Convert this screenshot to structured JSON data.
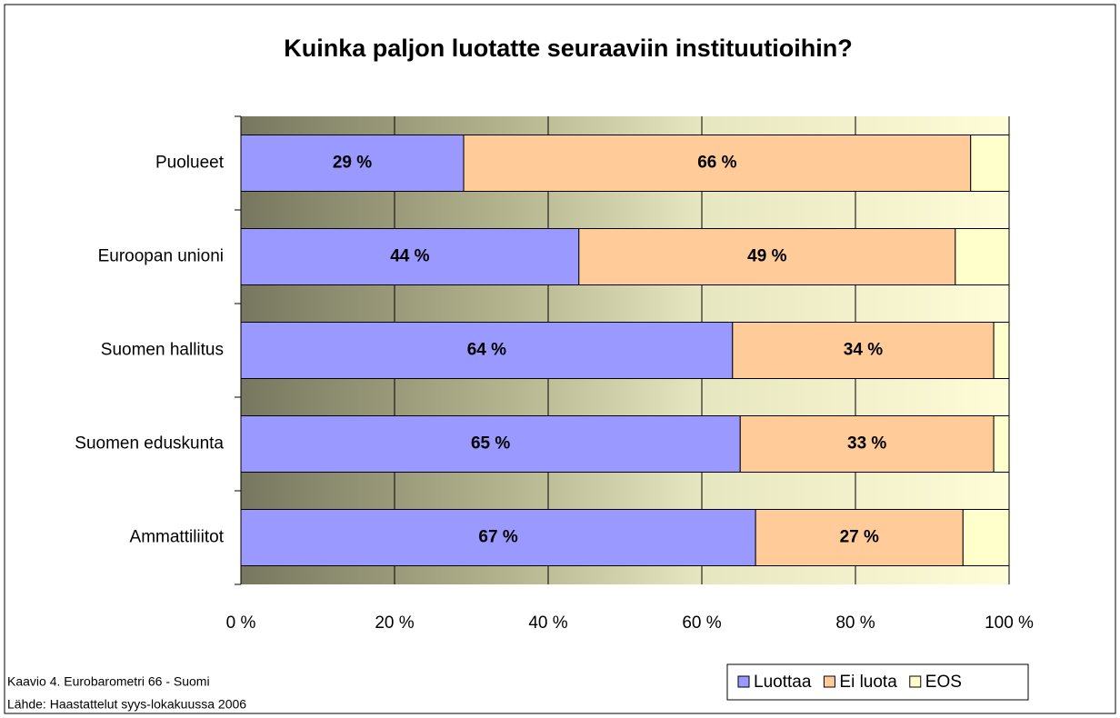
{
  "chart_data": {
    "type": "stacked_bar_horizontal",
    "title": "Kuinka paljon luotatte seuraaviin instituutioihin?",
    "categories": [
      "Puolueet",
      "Euroopan unioni",
      "Suomen hallitus",
      "Suomen eduskunta",
      "Ammattiliitot"
    ],
    "series": [
      {
        "name": "Luottaa",
        "color": "#9999ff",
        "values": [
          29,
          44,
          64,
          65,
          67
        ],
        "value_labels": [
          "29 %",
          "44 %",
          "64 %",
          "65 %",
          "67 %"
        ]
      },
      {
        "name": "Ei luota",
        "color": "#ffcc99",
        "values": [
          66,
          49,
          34,
          33,
          27
        ],
        "value_labels": [
          "66 %",
          "49 %",
          "34 %",
          "33 %",
          "27 %"
        ]
      },
      {
        "name": "EOS",
        "color": "#ffffcc",
        "values": [
          5,
          7,
          2,
          2,
          6
        ]
      }
    ],
    "xlim": [
      0,
      100
    ],
    "xticks": [
      {
        "value": 0,
        "label": "0 %"
      },
      {
        "value": 20,
        "label": "20 %"
      },
      {
        "value": 40,
        "label": "40 %"
      },
      {
        "value": 60,
        "label": "60 %"
      },
      {
        "value": 80,
        "label": "80 %"
      },
      {
        "value": 100,
        "label": "100 %"
      }
    ],
    "grid": true,
    "legend": "bottom-right",
    "annotations": [
      "Kaavio 4. Eurobarometri 66 - Suomi",
      "Lähde: Haastattelut syys-lokakuussa 2006"
    ]
  }
}
